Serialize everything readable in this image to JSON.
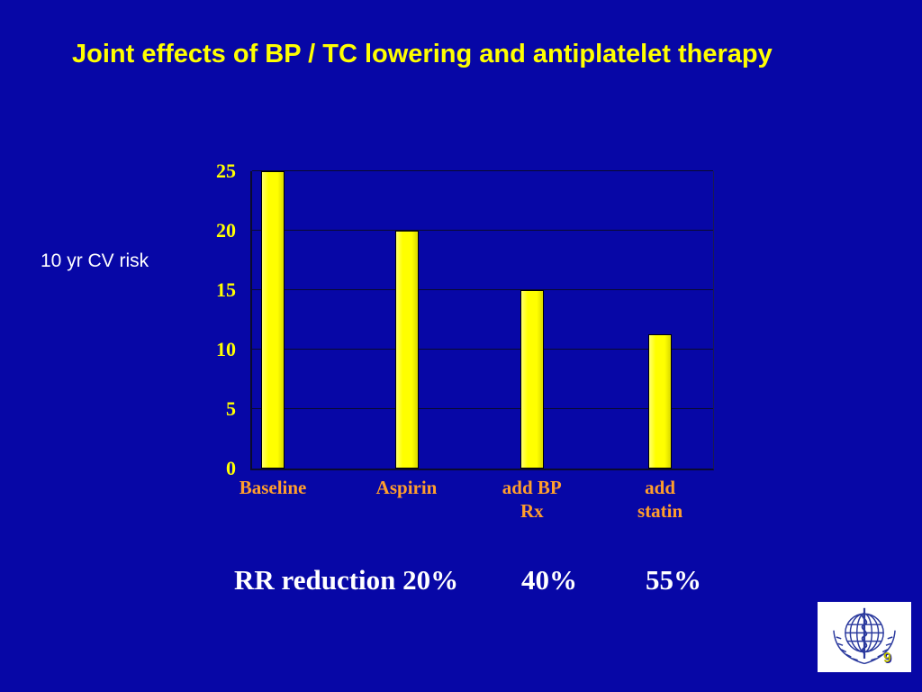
{
  "slide": {
    "title": "Joint effects of BP / TC lowering and antiplatelet therapy",
    "side_label": "10 yr CV risk",
    "page_number": "9",
    "background_color": "#0707A6",
    "title_color": "#FFFF00",
    "bar_color": "#FFFF00",
    "category_color": "#FF9E2C",
    "logo": "who-logo"
  },
  "chart_data": {
    "type": "bar",
    "title": "Joint effects of BP / TC lowering and antiplatelet therapy",
    "categories": [
      "Baseline",
      "Aspirin",
      "add BP\nRx",
      "add\nstatin"
    ],
    "values": [
      25,
      20,
      15,
      11.3
    ],
    "xlabel": "",
    "ylabel": "10 yr CV risk",
    "ylim": [
      0,
      25
    ],
    "yticks": [
      0,
      5,
      10,
      15,
      20,
      25
    ],
    "grid": true,
    "legend": false,
    "bar_color": "#FFFF00",
    "plot_background": "#0707A6"
  },
  "rr_row": {
    "label": "RR reduction 20%",
    "value_bp": "40%",
    "value_statin": "55%"
  }
}
